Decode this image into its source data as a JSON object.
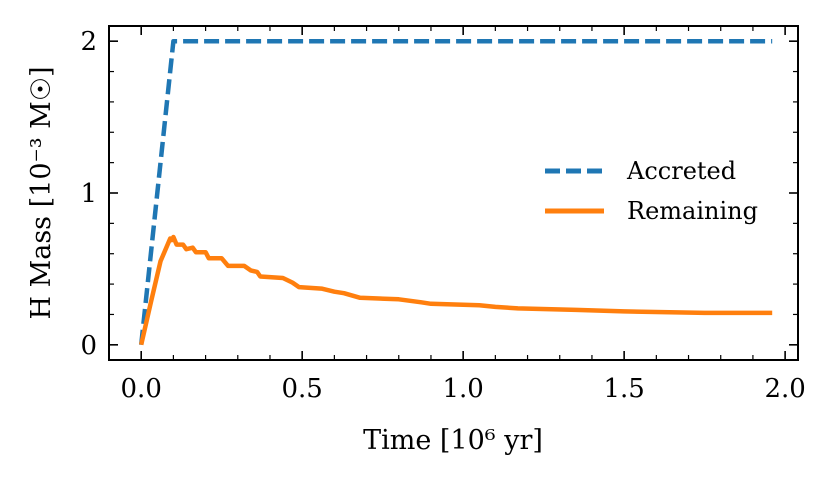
{
  "chart_data": {
    "type": "line",
    "xlabel": "Time [10⁶ yr]",
    "ylabel": "H Mass [10⁻³ M☉]",
    "xlim": [
      -0.1,
      2.04
    ],
    "ylim": [
      -0.1,
      2.1
    ],
    "xticks": [
      0.0,
      0.5,
      1.0,
      1.5,
      2.0
    ],
    "xtick_labels": [
      "0.0",
      "0.5",
      "1.0",
      "1.5",
      "2.0"
    ],
    "yticks": [
      0,
      1,
      2
    ],
    "ytick_labels": [
      "0",
      "1",
      "2"
    ],
    "legend_position": "center-right",
    "series": [
      {
        "name": "Accreted",
        "color": "#1f77b4",
        "style": "dashed",
        "points": [
          [
            0.0,
            0.0
          ],
          [
            0.1,
            2.0
          ],
          [
            1.96,
            2.0
          ]
        ]
      },
      {
        "name": "Remaining",
        "color": "#ff7f0e",
        "style": "solid",
        "points": [
          [
            0.0,
            0.0
          ],
          [
            0.03,
            0.28
          ],
          [
            0.06,
            0.55
          ],
          [
            0.09,
            0.7
          ],
          [
            0.095,
            0.69
          ],
          [
            0.1,
            0.71
          ],
          [
            0.11,
            0.66
          ],
          [
            0.13,
            0.66
          ],
          [
            0.14,
            0.63
          ],
          [
            0.16,
            0.64
          ],
          [
            0.17,
            0.61
          ],
          [
            0.2,
            0.61
          ],
          [
            0.21,
            0.57
          ],
          [
            0.25,
            0.57
          ],
          [
            0.27,
            0.52
          ],
          [
            0.32,
            0.52
          ],
          [
            0.34,
            0.49
          ],
          [
            0.36,
            0.48
          ],
          [
            0.37,
            0.45
          ],
          [
            0.44,
            0.44
          ],
          [
            0.47,
            0.41
          ],
          [
            0.49,
            0.38
          ],
          [
            0.56,
            0.37
          ],
          [
            0.6,
            0.35
          ],
          [
            0.63,
            0.34
          ],
          [
            0.68,
            0.31
          ],
          [
            0.8,
            0.3
          ],
          [
            0.87,
            0.28
          ],
          [
            0.9,
            0.27
          ],
          [
            1.05,
            0.26
          ],
          [
            1.1,
            0.25
          ],
          [
            1.17,
            0.24
          ],
          [
            1.35,
            0.23
          ],
          [
            1.5,
            0.22
          ],
          [
            1.75,
            0.21
          ],
          [
            1.96,
            0.21
          ]
        ]
      }
    ]
  }
}
